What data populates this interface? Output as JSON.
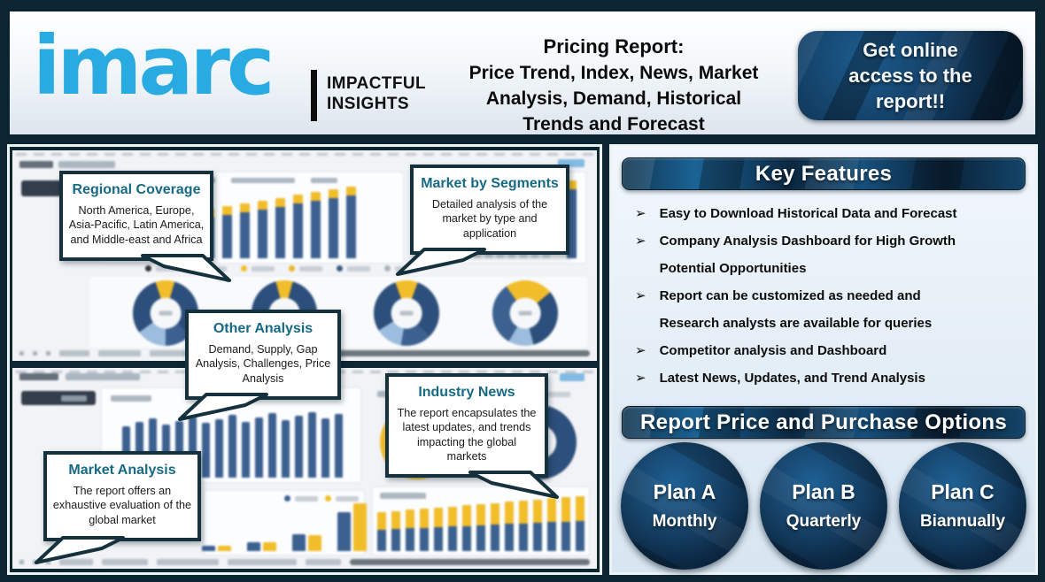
{
  "header": {
    "logo_text": "imarc",
    "tagline_line1": "IMPACTFUL",
    "tagline_line2": "INSIGHTS",
    "title_line1": "Pricing Report:",
    "title_rest": "Price Trend, Index, News, Market\nAnalysis, Demand, Historical\nTrends and Forecast",
    "cta_label": "Get online\naccess to the\nreport!!"
  },
  "callouts": [
    {
      "title": "Regional Coverage",
      "body": "North America, Europe,\nAsia-Pacific, Latin America,\nand Middle-east and Africa"
    },
    {
      "title": "Market by Segments",
      "body": "Detailed analysis of the\nmarket by type and\napplication"
    },
    {
      "title": "Other Analysis",
      "body": "Demand, Supply, Gap\nAnalysis, Challenges, Price\nAnalysis"
    },
    {
      "title": "Industry News",
      "body": "The report encapsulates the\nlatest updates, and trends\nimpacting the global\nmarkets"
    },
    {
      "title": "Market Analysis",
      "body": "The report offers an\nexhaustive evaluation of the\nglobal market"
    }
  ],
  "key_features": {
    "heading": "Key Features",
    "bullet": "➢",
    "items": [
      "Easy to Download Historical Data and Forecast",
      "Company Analysis Dashboard for High Growth\nPotential Opportunities",
      "Report can be customized as needed and\nResearch analysts are available for queries",
      "Competitor analysis and Dashboard",
      "Latest News, Updates, and Trend Analysis"
    ]
  },
  "purchase": {
    "heading": "Report Price and Purchase Options",
    "plans": [
      {
        "name": "Plan A",
        "period": "Monthly"
      },
      {
        "name": "Plan B",
        "period": "Quarterly"
      },
      {
        "name": "Plan C",
        "period": "Biannually"
      }
    ]
  },
  "colors": {
    "accent_blue": "#29abe2",
    "dark_navy_bg": "#0c2633",
    "callout_border": "#15313d",
    "callout_title": "#176a85",
    "bar_navy": "#3c6191",
    "bar_yellow": "#f2bd2a"
  }
}
